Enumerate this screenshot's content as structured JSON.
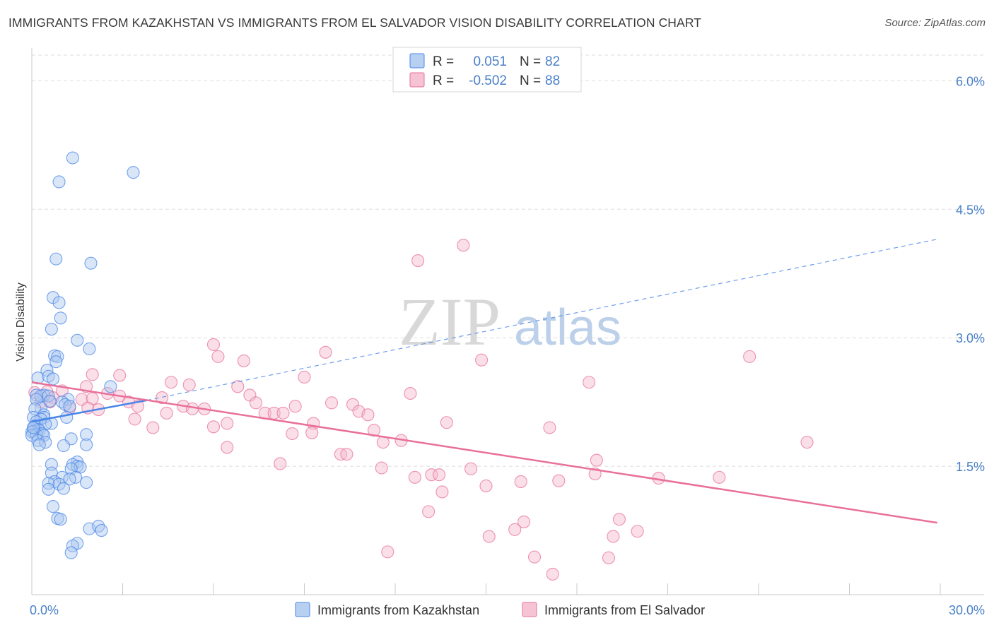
{
  "header": {
    "title": "IMMIGRANTS FROM KAZAKHSTAN VS IMMIGRANTS FROM EL SALVADOR VISION DISABILITY CORRELATION CHART",
    "source": "Source: ZipAtlas.com"
  },
  "watermark": {
    "zip": "ZIP",
    "atlas": "atlas"
  },
  "colors": {
    "kazakhstan": "#4a86e8",
    "kazakhstan_fill": "#aac8f0",
    "el_salvador": "#e8709a",
    "el_salvador_fill": "#f5b8cc",
    "tick_text": "#4a80c8",
    "grid": "#dddddd"
  },
  "stats": {
    "r_label": "R =",
    "n_label": "N =",
    "kazakhstan": {
      "r": "0.051",
      "n": "82"
    },
    "el_salvador": {
      "r": "-0.502",
      "n": "88"
    }
  },
  "chart_data": {
    "type": "scatter",
    "xlabel": "",
    "ylabel": "Vision Disability",
    "xlim": [
      0,
      30
    ],
    "ylim": [
      0.0,
      6.3
    ],
    "x_tick_labels": [
      "0.0%",
      "30.0%"
    ],
    "y_ticks": [
      1.5,
      3.0,
      4.5,
      6.0
    ],
    "y_tick_labels": [
      "1.5%",
      "3.0%",
      "4.5%",
      "6.0%"
    ],
    "grid": true,
    "legend_position": "bottom",
    "series": [
      {
        "name": "Immigrants from Kazakhstan",
        "trend": {
          "x": [
            0.0,
            3.8
          ],
          "y": [
            2.02,
            2.27
          ],
          "dashed_extension_to": [
            29.9,
            4.15
          ]
        },
        "points": [
          [
            1.35,
            5.1
          ],
          [
            3.35,
            4.93
          ],
          [
            0.9,
            4.82
          ],
          [
            0.8,
            3.92
          ],
          [
            1.95,
            3.87
          ],
          [
            0.7,
            3.47
          ],
          [
            0.9,
            3.41
          ],
          [
            0.95,
            3.23
          ],
          [
            0.65,
            3.1
          ],
          [
            1.5,
            2.97
          ],
          [
            1.9,
            2.87
          ],
          [
            0.75,
            2.79
          ],
          [
            0.85,
            2.78
          ],
          [
            0.5,
            2.62
          ],
          [
            0.8,
            2.72
          ],
          [
            0.2,
            2.53
          ],
          [
            0.55,
            2.55
          ],
          [
            0.7,
            2.52
          ],
          [
            2.6,
            2.43
          ],
          [
            0.4,
            2.33
          ],
          [
            0.15,
            2.33
          ],
          [
            0.3,
            2.32
          ],
          [
            0.55,
            2.32
          ],
          [
            0.15,
            2.28
          ],
          [
            1.2,
            2.28
          ],
          [
            0.6,
            2.26
          ],
          [
            1.0,
            2.25
          ],
          [
            1.1,
            2.22
          ],
          [
            1.25,
            2.2
          ],
          [
            0.3,
            2.18
          ],
          [
            0.1,
            2.17
          ],
          [
            0.4,
            2.1
          ],
          [
            0.4,
            2.07
          ],
          [
            0.05,
            2.07
          ],
          [
            1.15,
            2.07
          ],
          [
            0.3,
            2.05
          ],
          [
            0.15,
            2.02
          ],
          [
            0.65,
            2.0
          ],
          [
            0.45,
            1.99
          ],
          [
            0.1,
            1.97
          ],
          [
            0.05,
            1.95
          ],
          [
            0.2,
            1.93
          ],
          [
            0.25,
            1.92
          ],
          [
            0.05,
            1.91
          ],
          [
            0.0,
            1.9
          ],
          [
            0.35,
            1.88
          ],
          [
            0.15,
            1.87
          ],
          [
            0.0,
            1.86
          ],
          [
            0.4,
            1.86
          ],
          [
            1.8,
            1.87
          ],
          [
            1.3,
            1.82
          ],
          [
            0.2,
            1.8
          ],
          [
            0.45,
            1.78
          ],
          [
            0.25,
            1.75
          ],
          [
            1.05,
            1.74
          ],
          [
            1.8,
            1.75
          ],
          [
            1.5,
            1.55
          ],
          [
            0.65,
            1.52
          ],
          [
            1.35,
            1.52
          ],
          [
            1.5,
            1.5
          ],
          [
            1.6,
            1.49
          ],
          [
            1.3,
            1.47
          ],
          [
            0.65,
            1.42
          ],
          [
            1.0,
            1.37
          ],
          [
            1.45,
            1.37
          ],
          [
            1.25,
            1.35
          ],
          [
            0.75,
            1.32
          ],
          [
            1.8,
            1.31
          ],
          [
            0.55,
            1.3
          ],
          [
            0.9,
            1.29
          ],
          [
            1.05,
            1.24
          ],
          [
            0.55,
            1.23
          ],
          [
            0.7,
            1.03
          ],
          [
            0.85,
            0.89
          ],
          [
            0.95,
            0.88
          ],
          [
            1.9,
            0.77
          ],
          [
            2.2,
            0.8
          ],
          [
            2.3,
            0.75
          ],
          [
            1.5,
            0.6
          ],
          [
            1.35,
            0.57
          ],
          [
            1.3,
            0.49
          ],
          [
            0.05,
            1.95
          ]
        ]
      },
      {
        "name": "Immigrants from El Salvador",
        "trend": {
          "x": [
            0.0,
            29.9
          ],
          "y": [
            2.48,
            0.84
          ]
        },
        "points": [
          [
            14.25,
            4.08
          ],
          [
            12.75,
            3.9
          ],
          [
            6.0,
            2.92
          ],
          [
            9.7,
            2.83
          ],
          [
            6.15,
            2.78
          ],
          [
            14.85,
            2.74
          ],
          [
            23.7,
            2.78
          ],
          [
            7.0,
            2.73
          ],
          [
            2.9,
            2.56
          ],
          [
            2.0,
            2.57
          ],
          [
            9.0,
            2.54
          ],
          [
            4.6,
            2.48
          ],
          [
            5.2,
            2.45
          ],
          [
            6.8,
            2.43
          ],
          [
            18.4,
            2.48
          ],
          [
            1.8,
            2.43
          ],
          [
            2.5,
            2.35
          ],
          [
            7.2,
            2.33
          ],
          [
            0.5,
            2.37
          ],
          [
            12.5,
            2.35
          ],
          [
            3.2,
            2.25
          ],
          [
            1.65,
            2.28
          ],
          [
            2.0,
            2.29
          ],
          [
            4.3,
            2.3
          ],
          [
            7.4,
            2.24
          ],
          [
            9.9,
            2.24
          ],
          [
            10.6,
            2.22
          ],
          [
            3.5,
            2.2
          ],
          [
            8.7,
            2.2
          ],
          [
            5.0,
            2.2
          ],
          [
            1.85,
            2.18
          ],
          [
            5.3,
            2.17
          ],
          [
            10.8,
            2.14
          ],
          [
            2.2,
            2.16
          ],
          [
            5.7,
            2.17
          ],
          [
            11.1,
            2.1
          ],
          [
            4.45,
            2.12
          ],
          [
            7.7,
            2.12
          ],
          [
            8.0,
            2.12
          ],
          [
            8.3,
            2.12
          ],
          [
            3.4,
            2.05
          ],
          [
            13.7,
            2.01
          ],
          [
            6.45,
            2.0
          ],
          [
            9.3,
            2.0
          ],
          [
            4.0,
            1.95
          ],
          [
            6.0,
            1.96
          ],
          [
            17.1,
            1.95
          ],
          [
            11.3,
            1.92
          ],
          [
            8.6,
            1.88
          ],
          [
            9.25,
            1.89
          ],
          [
            25.6,
            1.78
          ],
          [
            11.6,
            1.78
          ],
          [
            12.2,
            1.8
          ],
          [
            6.45,
            1.72
          ],
          [
            10.2,
            1.64
          ],
          [
            10.4,
            1.64
          ],
          [
            18.65,
            1.57
          ],
          [
            8.2,
            1.53
          ],
          [
            11.55,
            1.48
          ],
          [
            14.5,
            1.47
          ],
          [
            18.6,
            1.41
          ],
          [
            13.2,
            1.4
          ],
          [
            13.45,
            1.4
          ],
          [
            12.65,
            1.37
          ],
          [
            22.7,
            1.37
          ],
          [
            20.7,
            1.36
          ],
          [
            17.4,
            1.33
          ],
          [
            16.15,
            1.32
          ],
          [
            15.0,
            1.27
          ],
          [
            13.55,
            1.2
          ],
          [
            13.1,
            0.97
          ],
          [
            19.4,
            0.88
          ],
          [
            16.25,
            0.85
          ],
          [
            15.95,
            0.76
          ],
          [
            20.0,
            0.74
          ],
          [
            15.1,
            0.68
          ],
          [
            19.2,
            0.68
          ],
          [
            11.75,
            0.5
          ],
          [
            16.6,
            0.44
          ],
          [
            19.05,
            0.43
          ],
          [
            17.2,
            0.24
          ],
          [
            0.1,
            2.36
          ],
          [
            0.3,
            2.25
          ],
          [
            0.7,
            2.3
          ],
          [
            1.0,
            2.38
          ],
          [
            2.9,
            2.32
          ],
          [
            0.6,
            2.25
          ],
          [
            1.25,
            2.18
          ]
        ]
      }
    ]
  },
  "legend": {
    "items": [
      {
        "label": "Immigrants from Kazakhstan"
      },
      {
        "label": "Immigrants from El Salvador"
      }
    ]
  }
}
